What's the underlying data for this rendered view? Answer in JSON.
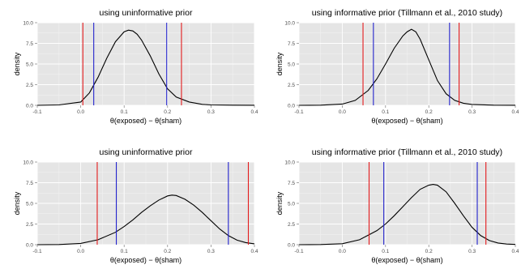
{
  "chart_data": [
    {
      "type": "line",
      "title": "using uninformative prior",
      "xlabel": "θ(exposed) − θ(sham)",
      "ylabel": "density",
      "xlim": [
        -0.1,
        0.4
      ],
      "ylim": [
        0,
        10
      ],
      "xticks": [
        -0.1,
        0.0,
        0.1,
        0.2,
        0.3,
        0.4
      ],
      "xtick_labels": [
        "-0.1",
        "0.0",
        "0.1",
        "0.2",
        "0.3",
        "0.4"
      ],
      "yticks": [
        0,
        2.5,
        5,
        7.5,
        10
      ],
      "ytick_labels": [
        "0.0",
        "2.5",
        "5.0",
        "7.5",
        "10.0"
      ],
      "grid": true,
      "curve": {
        "x": [
          -0.1,
          -0.05,
          0.0,
          0.02,
          0.04,
          0.06,
          0.08,
          0.1,
          0.11,
          0.12,
          0.13,
          0.14,
          0.16,
          0.18,
          0.2,
          0.22,
          0.25,
          0.28,
          0.3,
          0.35,
          0.4
        ],
        "y": [
          0,
          0.05,
          0.4,
          1.5,
          3.4,
          5.7,
          7.7,
          8.9,
          9.1,
          9.0,
          8.6,
          7.9,
          6.0,
          3.8,
          2.0,
          1.0,
          0.4,
          0.12,
          0.05,
          0.02,
          0.01
        ]
      },
      "vlines": [
        {
          "x": 0.005,
          "color": "#e41a1c"
        },
        {
          "x": 0.232,
          "color": "#e41a1c"
        },
        {
          "x": 0.03,
          "color": "#2222cc"
        },
        {
          "x": 0.198,
          "color": "#2222cc"
        }
      ]
    },
    {
      "type": "line",
      "title": "using informative prior (Tillmann et al., 2010 study)",
      "xlabel": "θ(exposed) − θ(sham)",
      "ylabel": "density",
      "xlim": [
        -0.1,
        0.4
      ],
      "ylim": [
        0,
        10
      ],
      "xticks": [
        -0.1,
        0.0,
        0.1,
        0.2,
        0.3,
        0.4
      ],
      "xtick_labels": [
        "-0.1",
        "0.0",
        "0.1",
        "0.2",
        "0.3",
        "0.4"
      ],
      "yticks": [
        0,
        2.5,
        5,
        7.5,
        10
      ],
      "ytick_labels": [
        "0.0",
        "2.5",
        "5.0",
        "7.5",
        "10.0"
      ],
      "grid": true,
      "curve": {
        "x": [
          -0.1,
          -0.05,
          0.0,
          0.03,
          0.06,
          0.08,
          0.1,
          0.12,
          0.14,
          0.15,
          0.16,
          0.17,
          0.18,
          0.2,
          0.22,
          0.24,
          0.26,
          0.28,
          0.3,
          0.35,
          0.4
        ],
        "y": [
          0,
          0.02,
          0.15,
          0.6,
          1.8,
          3.2,
          5.0,
          6.9,
          8.4,
          8.9,
          9.2,
          8.9,
          8.0,
          5.5,
          3.0,
          1.4,
          0.6,
          0.25,
          0.1,
          0.02,
          0.01
        ]
      },
      "vlines": [
        {
          "x": 0.048,
          "color": "#e41a1c"
        },
        {
          "x": 0.27,
          "color": "#e41a1c"
        },
        {
          "x": 0.072,
          "color": "#2222cc"
        },
        {
          "x": 0.248,
          "color": "#2222cc"
        }
      ]
    },
    {
      "type": "line",
      "title": "using uninformative prior",
      "xlabel": "θ(exposed) − θ(sham)",
      "ylabel": "density",
      "xlim": [
        -0.1,
        0.4
      ],
      "ylim": [
        0,
        10
      ],
      "xticks": [
        -0.1,
        0.0,
        0.1,
        0.2,
        0.3,
        0.4
      ],
      "xtick_labels": [
        "-0.1",
        "0.0",
        "0.1",
        "0.2",
        "0.3",
        "0.4"
      ],
      "yticks": [
        0,
        2.5,
        5,
        7.5,
        10
      ],
      "ytick_labels": [
        "0.0",
        "2.5",
        "5.0",
        "7.5",
        "10.0"
      ],
      "grid": true,
      "curve": {
        "x": [
          -0.1,
          -0.05,
          0.0,
          0.04,
          0.08,
          0.1,
          0.12,
          0.14,
          0.16,
          0.18,
          0.2,
          0.21,
          0.22,
          0.24,
          0.26,
          0.28,
          0.3,
          0.32,
          0.34,
          0.36,
          0.38,
          0.4
        ],
        "y": [
          0,
          0.02,
          0.15,
          0.6,
          1.5,
          2.2,
          3.0,
          3.9,
          4.7,
          5.4,
          5.9,
          6.0,
          5.95,
          5.5,
          4.8,
          3.9,
          2.9,
          1.9,
          1.1,
          0.55,
          0.25,
          0.1
        ]
      },
      "vlines": [
        {
          "x": 0.038,
          "color": "#e41a1c"
        },
        {
          "x": 0.386,
          "color": "#e41a1c"
        },
        {
          "x": 0.082,
          "color": "#2222cc"
        },
        {
          "x": 0.34,
          "color": "#2222cc"
        }
      ]
    },
    {
      "type": "line",
      "title": "using informative prior (Tillmann et al., 2010 study)",
      "xlabel": "θ(exposed) − θ(sham)",
      "ylabel": "density",
      "xlim": [
        -0.1,
        0.4
      ],
      "ylim": [
        0,
        10
      ],
      "xticks": [
        -0.1,
        0.0,
        0.1,
        0.2,
        0.3,
        0.4
      ],
      "xtick_labels": [
        "-0.1",
        "0.0",
        "0.1",
        "0.2",
        "0.3",
        "0.4"
      ],
      "yticks": [
        0,
        2.5,
        5,
        7.5,
        10
      ],
      "ytick_labels": [
        "0.0",
        "2.5",
        "5.0",
        "7.5",
        "10.0"
      ],
      "grid": true,
      "curve": {
        "x": [
          -0.1,
          -0.05,
          0.0,
          0.04,
          0.08,
          0.1,
          0.12,
          0.14,
          0.16,
          0.18,
          0.2,
          0.21,
          0.22,
          0.24,
          0.26,
          0.28,
          0.3,
          0.32,
          0.34,
          0.36,
          0.38,
          0.4
        ],
        "y": [
          0,
          0.02,
          0.12,
          0.6,
          1.7,
          2.5,
          3.5,
          4.6,
          5.7,
          6.7,
          7.2,
          7.3,
          7.2,
          6.4,
          5.0,
          3.5,
          2.1,
          1.1,
          0.5,
          0.2,
          0.08,
          0.03
        ]
      },
      "vlines": [
        {
          "x": 0.062,
          "color": "#e41a1c"
        },
        {
          "x": 0.332,
          "color": "#e41a1c"
        },
        {
          "x": 0.096,
          "color": "#2222cc"
        },
        {
          "x": 0.312,
          "color": "#2222cc"
        }
      ]
    }
  ]
}
